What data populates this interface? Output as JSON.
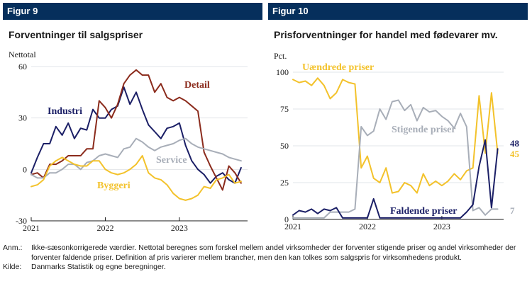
{
  "left": {
    "figure_label": "Figur 9",
    "title": "Forventninger til salgspriser",
    "unit": "Nettotal"
  },
  "right": {
    "figure_label": "Figur 10",
    "title": "Prisforventninger for handel med fødevarer mv.",
    "unit": "Pct."
  },
  "notes": {
    "anm_key": "Anm.:",
    "anm_text": "Ikke-sæsonkorrigerede værdier. Nettotal beregnes som forskel mellem andel virksomheder der forventer stigende priser og andel virksomheder der forventer faldende priser. Definition af pris varierer mellem brancher, men den kan tolkes som salgspris for virksomhedens produkt.",
    "kilde_key": "Kilde:",
    "kilde_text": "Danmarks Statistik og egne beregninger."
  },
  "chart_data": [
    {
      "type": "line",
      "title": "Forventninger til salgspriser",
      "ylabel": "Nettotal",
      "ylim": [
        -30,
        60
      ],
      "yticks": [
        -30,
        0,
        30,
        60
      ],
      "xlim": [
        2021.0,
        2023.92
      ],
      "xticks": [
        {
          "value": 2021.0,
          "label": "2021"
        },
        {
          "value": 2022.0,
          "label": "2022"
        },
        {
          "value": 2023.0,
          "label": "2023"
        }
      ],
      "grid": true,
      "legend": "inline labels",
      "x": [
        2021.0,
        2021.083,
        2021.167,
        2021.25,
        2021.333,
        2021.417,
        2021.5,
        2021.583,
        2021.667,
        2021.75,
        2021.833,
        2021.917,
        2022.0,
        2022.083,
        2022.167,
        2022.25,
        2022.333,
        2022.417,
        2022.5,
        2022.583,
        2022.667,
        2022.75,
        2022.833,
        2022.917,
        2023.0,
        2023.083,
        2023.167,
        2023.25,
        2023.333,
        2023.417,
        2023.5,
        2023.583,
        2023.667,
        2023.75,
        2023.833
      ],
      "series": [
        {
          "name": "Industri",
          "color": "#1b1f66",
          "label_color": "#1b1f66",
          "values": [
            -2,
            7,
            15,
            15,
            25,
            20,
            27,
            18,
            24,
            23,
            35,
            30,
            30,
            35,
            37,
            48,
            38,
            45,
            35,
            26,
            22,
            18,
            24,
            25,
            27,
            14,
            5,
            0,
            -3,
            -8,
            -4,
            -2,
            -6,
            -8,
            1
          ]
        },
        {
          "name": "Detail",
          "color": "#8b2b1c",
          "label_color": "#8b2b1c",
          "values": [
            -3,
            -2,
            -5,
            3,
            3,
            5,
            8,
            8,
            8,
            12,
            12,
            40,
            36,
            30,
            38,
            50,
            55,
            58,
            55,
            55,
            45,
            50,
            42,
            40,
            42,
            40,
            37,
            34,
            10,
            2,
            -5,
            -12,
            2,
            -2,
            -8
          ]
        },
        {
          "name": "Service",
          "color": "#a8aeb8",
          "label_color": "#a8aeb8",
          "values": [
            -3,
            -5,
            -5,
            -2,
            -2,
            0,
            3,
            3,
            0,
            4,
            5,
            8,
            9,
            8,
            7,
            12,
            13,
            18,
            16,
            13,
            11,
            13,
            14,
            15,
            17,
            18,
            15,
            13,
            12,
            11,
            10,
            9,
            7,
            6,
            5
          ]
        },
        {
          "name": "Byggeri",
          "color": "#f3c22b",
          "label_color": "#f3c22b",
          "values": [
            -10,
            -9,
            -6,
            2,
            5,
            7,
            5,
            3,
            2,
            2,
            5,
            5,
            0,
            -2,
            -3,
            -2,
            0,
            3,
            8,
            -2,
            -5,
            -6,
            -9,
            -14,
            -17,
            -18,
            -17,
            -15,
            -10,
            -11,
            -6,
            -5,
            -3,
            -8,
            -7
          ]
        }
      ]
    },
    {
      "type": "line",
      "title": "Prisforventninger for handel med fødevarer mv.",
      "ylabel": "Pct.",
      "ylim": [
        0,
        100
      ],
      "yticks": [
        0,
        25,
        50,
        75,
        100
      ],
      "xlim": [
        2021.0,
        2023.83
      ],
      "xticks": [
        {
          "value": 2021.0,
          "label": "2021"
        },
        {
          "value": 2022.0,
          "label": "2022"
        },
        {
          "value": 2023.0,
          "label": "2023"
        }
      ],
      "grid": true,
      "legend": "inline labels",
      "x": [
        2021.0,
        2021.083,
        2021.167,
        2021.25,
        2021.333,
        2021.417,
        2021.5,
        2021.583,
        2021.667,
        2021.75,
        2021.833,
        2021.917,
        2022.0,
        2022.083,
        2022.167,
        2022.25,
        2022.333,
        2022.417,
        2022.5,
        2022.583,
        2022.667,
        2022.75,
        2022.833,
        2022.917,
        2023.0,
        2023.083,
        2023.167,
        2023.25,
        2023.333,
        2023.417,
        2023.5,
        2023.583,
        2023.667,
        2023.75
      ],
      "series": [
        {
          "name": "Uændrede priser",
          "color": "#f3c22b",
          "label_color": "#f3c22b",
          "values": [
            95,
            93,
            94,
            91,
            96,
            91,
            82,
            86,
            95,
            93,
            92,
            35,
            43,
            28,
            25,
            35,
            18,
            19,
            25,
            23,
            18,
            31,
            23,
            26,
            23,
            26,
            31,
            27,
            33,
            35,
            84,
            45,
            86,
            45
          ],
          "end_label": "45"
        },
        {
          "name": "Stigende priser",
          "color": "#a8aeb8",
          "label_color": "#a8aeb8",
          "values": [
            1,
            1,
            1,
            1,
            1,
            1,
            5,
            5,
            5,
            5,
            7,
            63,
            57,
            60,
            75,
            68,
            80,
            81,
            74,
            78,
            67,
            76,
            73,
            74,
            70,
            67,
            62,
            72,
            63,
            6,
            8,
            3,
            7,
            7
          ],
          "end_label": "7"
        },
        {
          "name": "Faldende priser",
          "color": "#1b1f66",
          "label_color": "#1b1f66",
          "values": [
            3,
            6,
            5,
            7,
            4,
            7,
            6,
            8,
            1,
            1,
            1,
            1,
            1,
            14,
            1,
            1,
            1,
            1,
            1,
            1,
            1,
            1,
            1,
            1,
            1,
            1,
            1,
            1,
            5,
            10,
            36,
            54,
            8,
            48
          ],
          "end_label": "48"
        }
      ]
    }
  ]
}
